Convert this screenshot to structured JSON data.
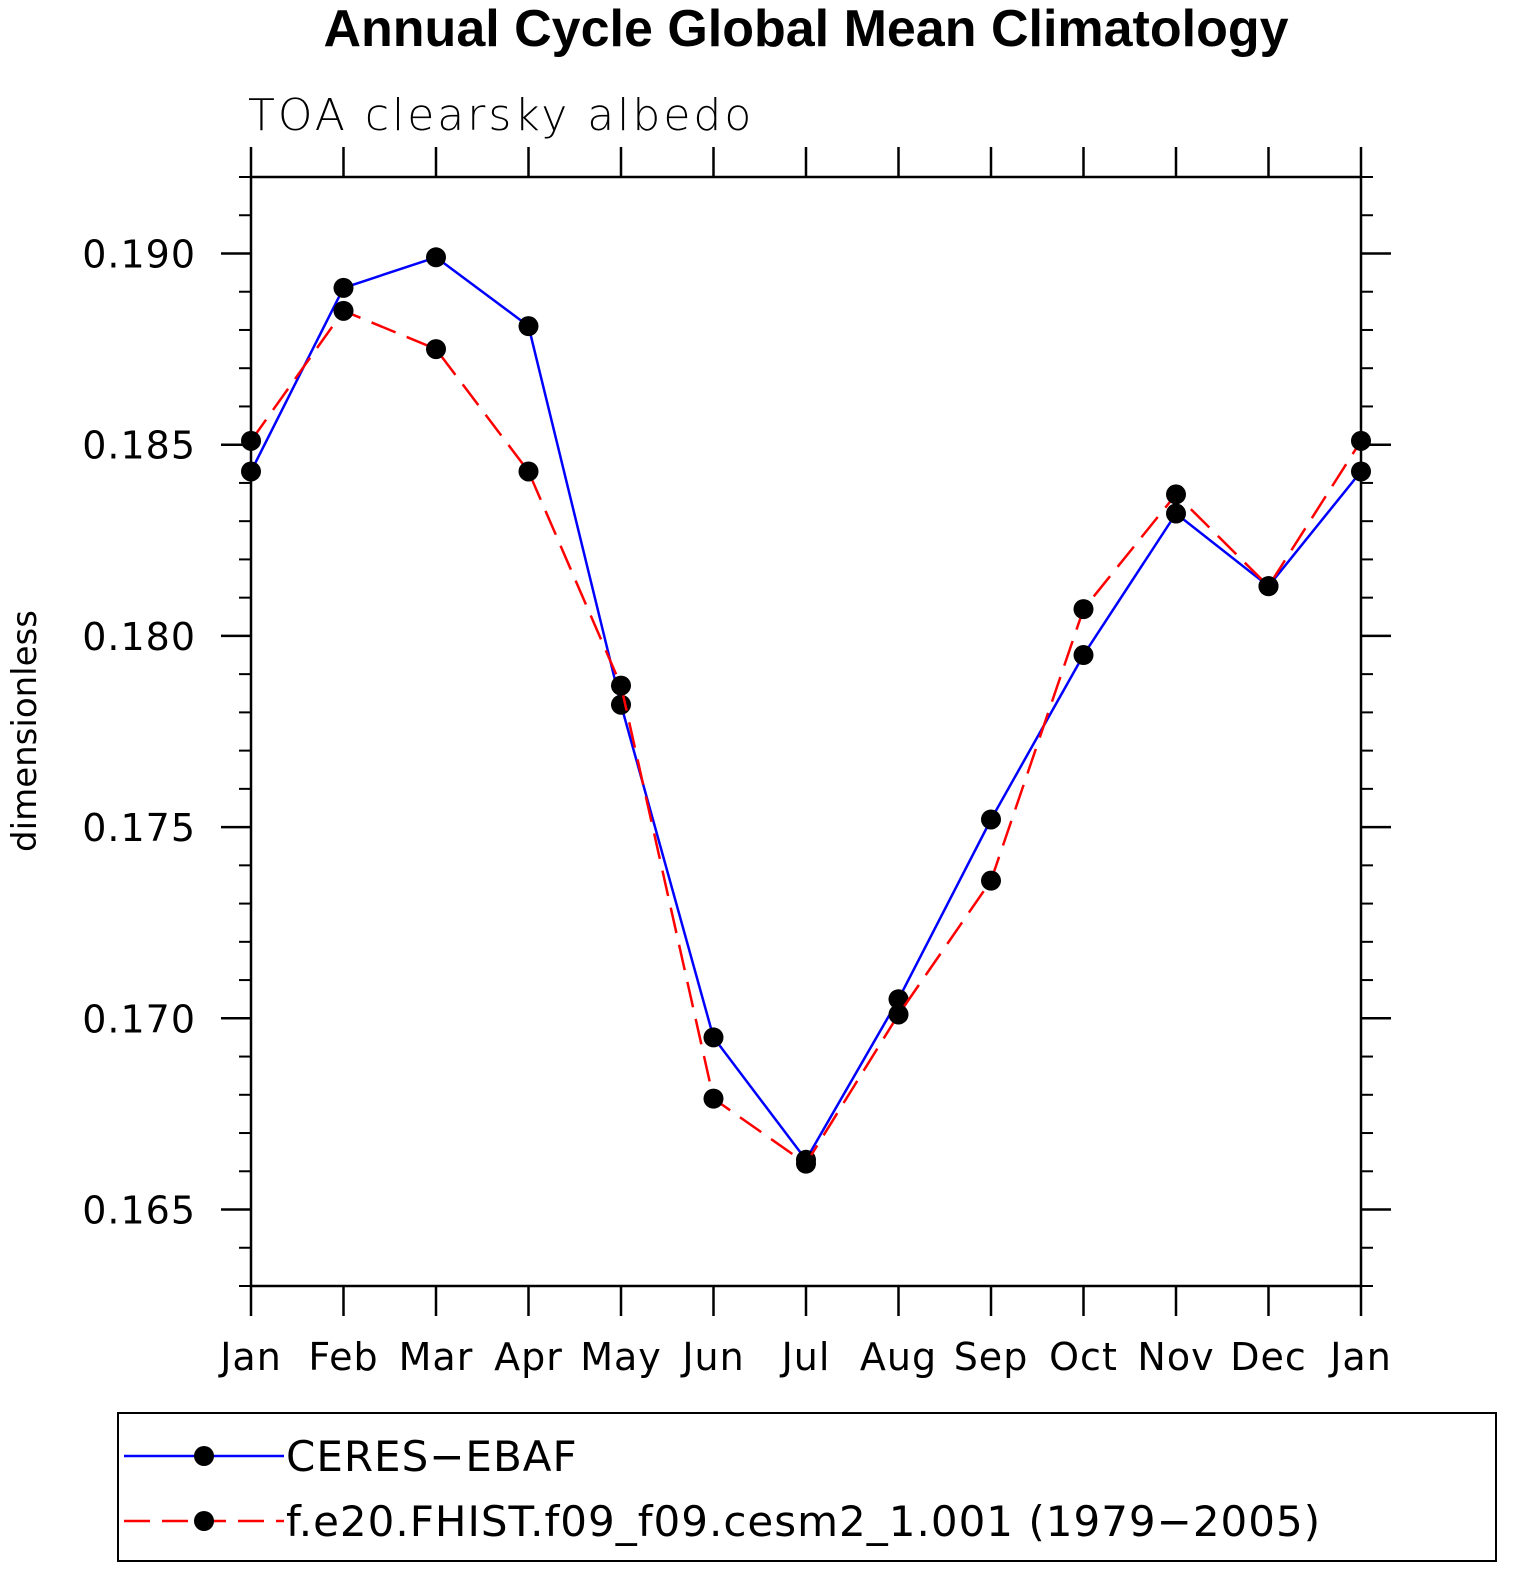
{
  "chart_data": {
    "type": "line",
    "title": "Annual Cycle Global Mean Climatology",
    "subtitle": "TOA clearsky albedo",
    "xlabel": "",
    "ylabel": "dimensionless",
    "categories": [
      "Jan",
      "Feb",
      "Mar",
      "Apr",
      "May",
      "Jun",
      "Jul",
      "Aug",
      "Sep",
      "Oct",
      "Nov",
      "Dec",
      "Jan"
    ],
    "ylim": [
      0.163,
      0.192
    ],
    "yticks": [
      0.165,
      0.17,
      0.175,
      0.18,
      0.185,
      0.19
    ],
    "ytick_labels": [
      "0.165",
      "0.170",
      "0.175",
      "0.180",
      "0.185",
      "0.190"
    ],
    "yminor_step": 0.001,
    "grid": false,
    "legend_position": "bottom",
    "series": [
      {
        "name": "CERES−EBAF",
        "color": "#0000ff",
        "line_style": "solid",
        "marker": "filled-circle",
        "values": [
          0.1843,
          0.1891,
          0.1899,
          0.1881,
          0.1782,
          0.1695,
          0.1663,
          0.1705,
          0.1752,
          0.1795,
          0.1832,
          0.1813,
          0.1843
        ]
      },
      {
        "name": "f.e20.FHIST.f09_f09.cesm2_1.001 (1979−2005)",
        "color": "#ff0000",
        "line_style": "dashed",
        "marker": "filled-circle",
        "values": [
          0.1851,
          0.1885,
          0.1875,
          0.1843,
          0.1787,
          0.1679,
          0.1662,
          0.1701,
          0.1736,
          0.1807,
          0.1837,
          0.1813,
          0.1851
        ]
      }
    ]
  }
}
